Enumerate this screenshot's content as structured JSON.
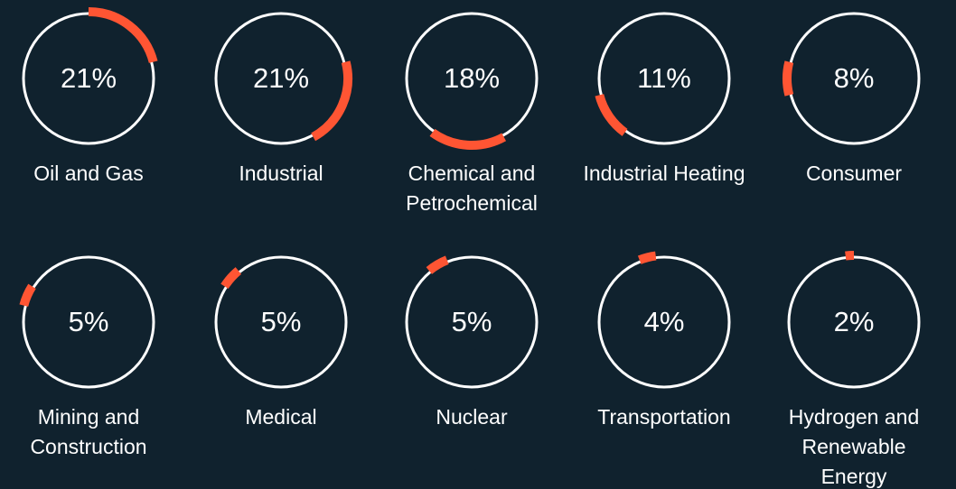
{
  "chart_data": {
    "type": "donut",
    "categories": [
      "Oil and Gas",
      "Industrial",
      "Chemical and Petrochemical",
      "Industrial Heating",
      "Consumer",
      "Mining and Construction",
      "Medical",
      "Nuclear",
      "Transportation",
      "Hydrogen and Renewable Energy"
    ],
    "values": [
      21,
      21,
      18,
      11,
      8,
      5,
      5,
      5,
      4,
      2
    ],
    "value_labels": [
      "21%",
      "21%",
      "18%",
      "11%",
      "8%",
      "5%",
      "5%",
      "5%",
      "4%",
      "2%"
    ],
    "color": "#ff5533"
  }
}
